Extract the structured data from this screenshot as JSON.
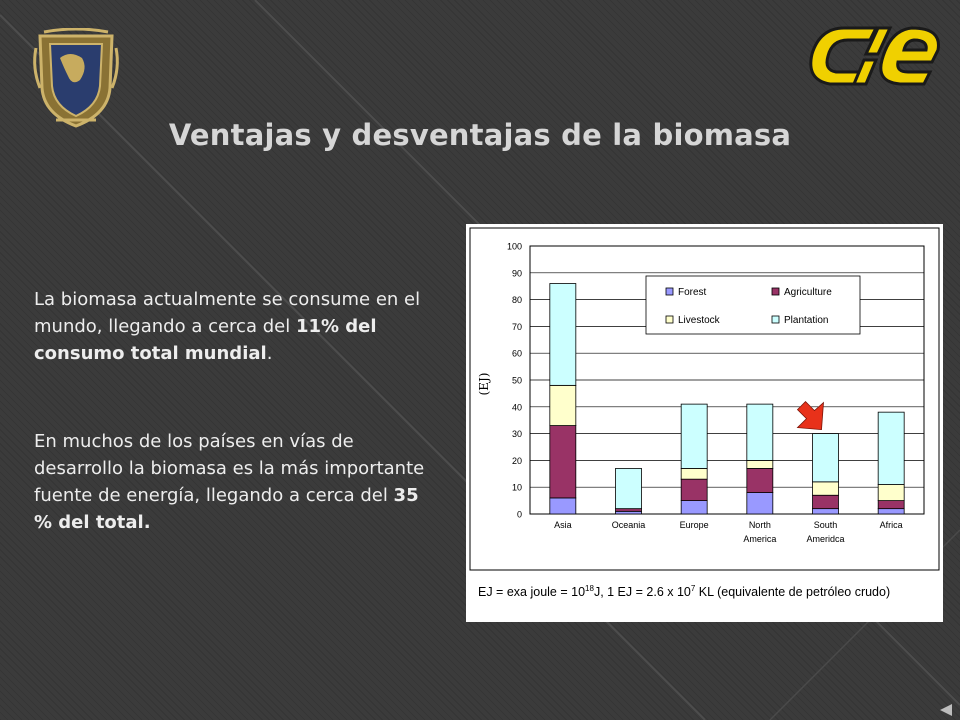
{
  "slide": {
    "title": "Ventajas y desventajas de la biomasa",
    "paragraph1": {
      "text": "La biomasa actualmente se consume en el mundo, llegando a cerca del ",
      "bold": "11% del consumo total mundial",
      "end": "."
    },
    "paragraph2": {
      "text": "En muchos de los países en vías de desarrollo la biomasa es la más importante fuente de energía, llegando a cerca del ",
      "bold": "35 % del total."
    },
    "footnote": {
      "p1": "EJ = exa joule = 10",
      "sup1": "18",
      "p2": "J, 1 EJ = 2.6 x 10",
      "sup2": "7",
      "p3": " KL (equivalente de petróleo crudo)"
    },
    "logos": {
      "left": "escudo UNAM",
      "right": "ie"
    }
  },
  "chart_data": {
    "type": "bar",
    "stacked": true,
    "title": "",
    "xlabel": "",
    "ylabel": "(EJ)",
    "ylim": [
      0,
      100
    ],
    "yticks": [
      0,
      10,
      20,
      30,
      40,
      50,
      60,
      70,
      80,
      90,
      100
    ],
    "grid": true,
    "legend_position": "top-right",
    "categories": [
      [
        "Asia"
      ],
      [
        "Oceania"
      ],
      [
        "Europe"
      ],
      [
        "North",
        "America"
      ],
      [
        "South",
        "Ameridca"
      ],
      [
        "Africa"
      ]
    ],
    "series": [
      {
        "name": "Forest",
        "color": "#9999ff",
        "values": [
          6,
          1,
          5,
          8,
          2,
          2
        ]
      },
      {
        "name": "Agriculture",
        "color": "#993366",
        "values": [
          27,
          1,
          8,
          9,
          5,
          3
        ]
      },
      {
        "name": "Livestock",
        "color": "#ffffcc",
        "values": [
          15,
          0,
          4,
          3,
          5,
          6
        ]
      },
      {
        "name": "Plantation",
        "color": "#ccffff",
        "values": [
          38,
          15,
          24,
          21,
          18,
          27
        ]
      }
    ],
    "annotation": {
      "type": "arrow",
      "color": "#e8311a",
      "target_category": 4
    }
  }
}
